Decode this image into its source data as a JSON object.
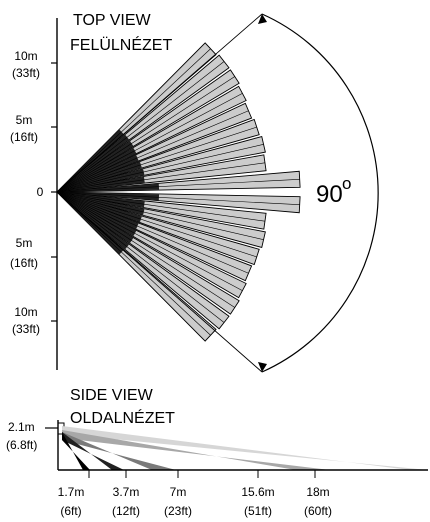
{
  "top_view": {
    "title_en": "TOP VIEW",
    "title_hu": "FELÜLNÉZET",
    "angle_value": "90",
    "angle_unit": "o",
    "y_ticks": [
      {
        "m": "10m",
        "ft": "(33ft)"
      },
      {
        "m": "5m",
        "ft": "(16ft)"
      },
      {
        "m": "0",
        "ft": ""
      },
      {
        "m": "5m",
        "ft": "(16ft)"
      },
      {
        "m": "10m",
        "ft": "(33ft)"
      }
    ]
  },
  "side_view": {
    "title_en": "SIDE VIEW",
    "title_hu": "OLDALNÉZET",
    "height_m": "2.1m",
    "height_ft": "(6.8ft)",
    "distances": [
      {
        "m": "1.7m",
        "ft": "(6ft)"
      },
      {
        "m": "3.7m",
        "ft": "(12ft)"
      },
      {
        "m": "7m",
        "ft": "(23ft)"
      },
      {
        "m": "15.6m",
        "ft": "(51ft)"
      },
      {
        "m": "18m",
        "ft": "(60ft)"
      }
    ]
  },
  "colors": {
    "beam_fill": "#cccccc",
    "beam_dark": "#222222",
    "beam_mid": "#666666",
    "line": "#000000"
  }
}
